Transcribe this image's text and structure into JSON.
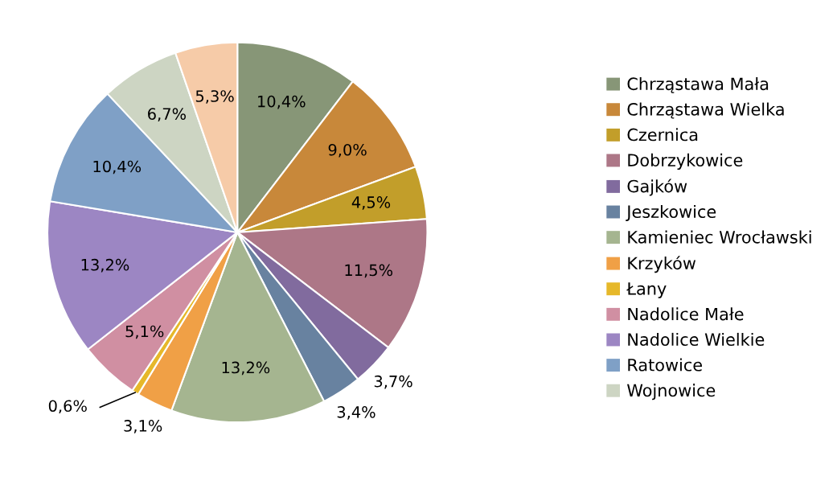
{
  "chart_data": {
    "type": "pie",
    "categories": [
      "Chrząstawa Mała",
      "Chrząstawa Wielka",
      "Czernica",
      "Dobrzykowice",
      "Gajków",
      "Jeszkowice",
      "Kamieniec Wrocławski",
      "Krzyków",
      "Łany",
      "Nadolice Małe",
      "Nadolice Wielkie",
      "Ratowice",
      "Wojnowice",
      null
    ],
    "values": [
      10.4,
      9.0,
      4.5,
      11.5,
      3.7,
      3.4,
      13.2,
      3.1,
      0.6,
      5.1,
      13.2,
      10.4,
      6.7,
      5.3
    ],
    "value_labels": [
      "10,4%",
      "9,0%",
      "4,5%",
      "11,5%",
      "3,7%",
      "3,4%",
      "13,2%",
      "3,1%",
      "0,6%",
      "5,1%",
      "13,2%",
      "10,4%",
      "6,7%",
      "5,3%"
    ],
    "colors": [
      "#879677",
      "#c8883a",
      "#c29e2a",
      "#ad7787",
      "#816b9e",
      "#6882a0",
      "#a5b590",
      "#f0a046",
      "#e6b82a",
      "#d08fa2",
      "#9c86c3",
      "#7fa0c6",
      "#cdd5c3",
      "#f6cba8"
    ],
    "legend": "right"
  }
}
